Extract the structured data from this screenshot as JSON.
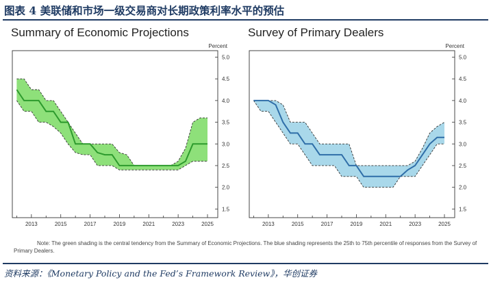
{
  "figure_title": "图表 4   美联储和市场一级交易商对长期政策利率水平的预估",
  "source": "资料来源：《Monetary Policy and the Fed’s Framework Review》，华创证券",
  "note": "Note: The green shading is the central tendency from the Summary of Economic Projections. The blue shading represents the 25th to 75th percentile of responses from the Survey of Primary Dealers.",
  "colors": {
    "title": "#1f3b63",
    "green_fill": "#8ee07a",
    "green_line": "#2d9a2d",
    "blue_fill": "#a9d8ea",
    "blue_line": "#2f6ea8"
  },
  "chart_data": [
    {
      "type": "area",
      "title": "Summary of Economic Projections",
      "ylabel": "Percent",
      "xlabel": "",
      "xlim": [
        2011.7,
        2025.7
      ],
      "ylim": [
        1.3,
        5.15
      ],
      "x_ticks": [
        2013,
        2015,
        2017,
        2019,
        2021,
        2023,
        2025
      ],
      "y_ticks": [
        1.5,
        2.0,
        2.5,
        3.0,
        3.5,
        4.0,
        4.5,
        5.0
      ],
      "grid": false,
      "x": [
        2012.0,
        2012.5,
        2013.0,
        2013.5,
        2014.0,
        2014.5,
        2015.0,
        2015.5,
        2016.0,
        2016.5,
        2017.0,
        2017.5,
        2018.0,
        2018.5,
        2019.0,
        2019.5,
        2020.0,
        2020.5,
        2021.0,
        2021.5,
        2022.0,
        2022.5,
        2023.0,
        2023.5,
        2024.0,
        2024.5,
        2025.0
      ],
      "series": [
        {
          "role": "central tendency upper",
          "values": [
            4.5,
            4.5,
            4.25,
            4.25,
            4.0,
            4.0,
            3.75,
            3.5,
            3.25,
            3.0,
            3.0,
            3.0,
            3.0,
            3.0,
            2.8,
            2.75,
            2.5,
            2.5,
            2.5,
            2.5,
            2.5,
            2.5,
            2.6,
            2.9,
            3.5,
            3.6,
            3.6
          ]
        },
        {
          "role": "central tendency lower",
          "values": [
            4.0,
            3.75,
            3.75,
            3.5,
            3.5,
            3.4,
            3.25,
            3.0,
            2.8,
            2.75,
            2.75,
            2.5,
            2.5,
            2.5,
            2.4,
            2.4,
            2.4,
            2.4,
            2.4,
            2.4,
            2.4,
            2.4,
            2.4,
            2.5,
            2.6,
            2.6,
            2.6
          ]
        },
        {
          "role": "median",
          "values": [
            4.25,
            4.0,
            4.0,
            4.0,
            3.75,
            3.75,
            3.5,
            3.5,
            3.0,
            3.0,
            3.0,
            2.8,
            2.75,
            2.75,
            2.5,
            2.5,
            2.5,
            2.5,
            2.5,
            2.5,
            2.5,
            2.5,
            2.5,
            2.6,
            3.0,
            3.0,
            3.0
          ]
        }
      ]
    },
    {
      "type": "area",
      "title": "Survey of Primary Dealers",
      "ylabel": "Percent",
      "xlabel": "",
      "xlim": [
        2011.7,
        2025.7
      ],
      "ylim": [
        1.3,
        5.15
      ],
      "x_ticks": [
        2013,
        2015,
        2017,
        2019,
        2021,
        2023,
        2025
      ],
      "y_ticks": [
        1.5,
        2.0,
        2.5,
        3.0,
        3.5,
        4.0,
        4.5,
        5.0
      ],
      "grid": false,
      "x": [
        2012.0,
        2012.5,
        2013.0,
        2013.5,
        2014.0,
        2014.5,
        2015.0,
        2015.5,
        2016.0,
        2016.5,
        2017.0,
        2017.5,
        2018.0,
        2018.5,
        2019.0,
        2019.5,
        2020.0,
        2020.5,
        2021.0,
        2021.5,
        2022.0,
        2022.5,
        2023.0,
        2023.5,
        2024.0,
        2024.5,
        2025.0
      ],
      "series": [
        {
          "role": "75th percentile",
          "values": [
            4.0,
            4.0,
            4.0,
            4.0,
            3.9,
            3.5,
            3.5,
            3.5,
            3.25,
            3.0,
            3.0,
            3.0,
            3.0,
            3.0,
            2.5,
            2.5,
            2.5,
            2.5,
            2.5,
            2.5,
            2.5,
            2.5,
            2.6,
            2.9,
            3.25,
            3.4,
            3.5
          ]
        },
        {
          "role": "25th percentile",
          "values": [
            4.0,
            3.75,
            3.75,
            3.5,
            3.25,
            3.0,
            3.0,
            2.75,
            2.5,
            2.5,
            2.5,
            2.5,
            2.25,
            2.25,
            2.25,
            2.0,
            2.0,
            2.0,
            2.0,
            2.0,
            2.25,
            2.25,
            2.25,
            2.5,
            2.75,
            3.0,
            3.0
          ]
        },
        {
          "role": "median",
          "values": [
            4.0,
            4.0,
            4.0,
            3.9,
            3.5,
            3.25,
            3.25,
            3.0,
            3.0,
            2.75,
            2.75,
            2.75,
            2.75,
            2.5,
            2.5,
            2.25,
            2.25,
            2.25,
            2.25,
            2.25,
            2.25,
            2.4,
            2.5,
            2.75,
            3.0,
            3.15,
            3.15
          ]
        }
      ]
    }
  ]
}
